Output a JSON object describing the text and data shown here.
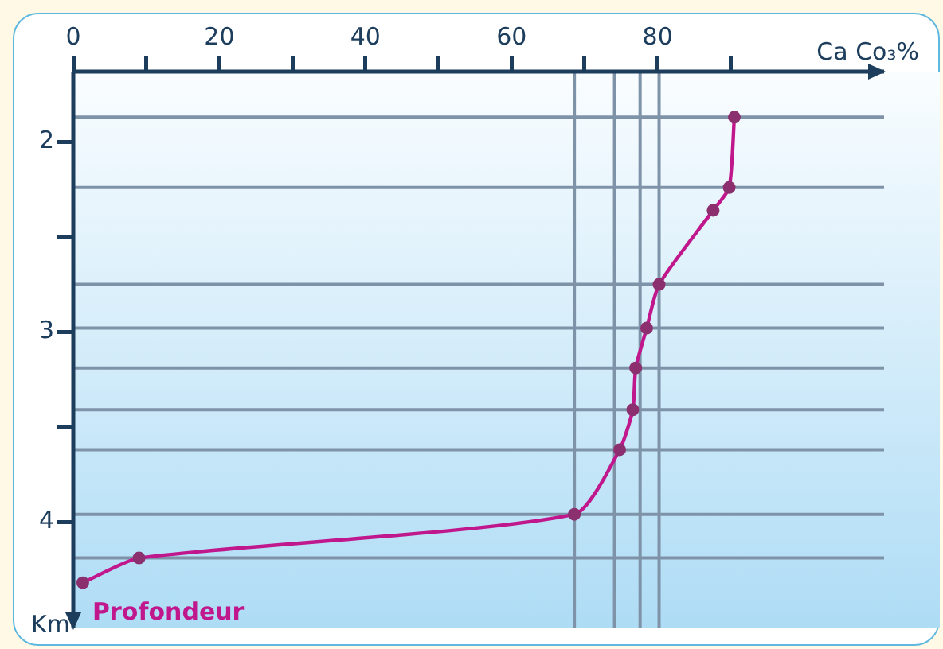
{
  "chart_data": {
    "type": "line",
    "xlabel": "Ca Co₃%",
    "ylabel": "Km",
    "annotations": [
      "Profondeur"
    ],
    "grid": false,
    "legend": false,
    "marker": "circle",
    "line_style": "solid",
    "xlim": [
      0,
      111
    ],
    "xticks": [
      0,
      {
        "value": 10,
        "label": null
      },
      20,
      {
        "value": 30,
        "label": null
      },
      40,
      {
        "value": 50,
        "label": null
      },
      60,
      {
        "value": 70,
        "label": null
      },
      80,
      {
        "value": 90,
        "label": null
      }
    ],
    "ylim": [
      4.56,
      1.63
    ],
    "yticks": [
      2,
      {
        "value": 2.5,
        "label": null
      },
      3,
      {
        "value": 3.5,
        "label": null
      },
      4
    ],
    "series": [
      {
        "color": "#c0178c",
        "x": [
          90.5,
          89.8,
          87.6,
          80.2,
          78.5,
          77,
          76.6,
          74.8,
          68.6,
          9,
          1.3
        ],
        "values": [
          1.87,
          2.24,
          2.36,
          2.75,
          2.98,
          3.19,
          3.41,
          3.62,
          3.96,
          4.19,
          4.32
        ]
      }
    ],
    "ref_lines": [
      {
        "axis": "y",
        "value": 1.87,
        "color": "#7f93a8"
      },
      {
        "axis": "y",
        "value": 2.24,
        "color": "#7f93a8"
      },
      {
        "axis": "y",
        "value": 2.75,
        "color": "#7f93a8"
      },
      {
        "axis": "y",
        "value": 2.98,
        "color": "#7f93a8"
      },
      {
        "axis": "y",
        "value": 3.19,
        "color": "#7f93a8"
      },
      {
        "axis": "y",
        "value": 3.41,
        "color": "#7f93a8"
      },
      {
        "axis": "y",
        "value": 3.62,
        "color": "#7f93a8"
      },
      {
        "axis": "y",
        "value": 3.96,
        "color": "#7f93a8"
      },
      {
        "axis": "y",
        "value": 4.19,
        "color": "#7f93a8"
      },
      {
        "axis": "x",
        "value": 68.6,
        "color": "#7f93a8"
      },
      {
        "axis": "x",
        "value": 74.1,
        "color": "#7f93a8"
      },
      {
        "axis": "x",
        "value": 77.6,
        "color": "#7f93a8"
      },
      {
        "axis": "x",
        "value": 80.2,
        "color": "#7f93a8"
      }
    ]
  }
}
